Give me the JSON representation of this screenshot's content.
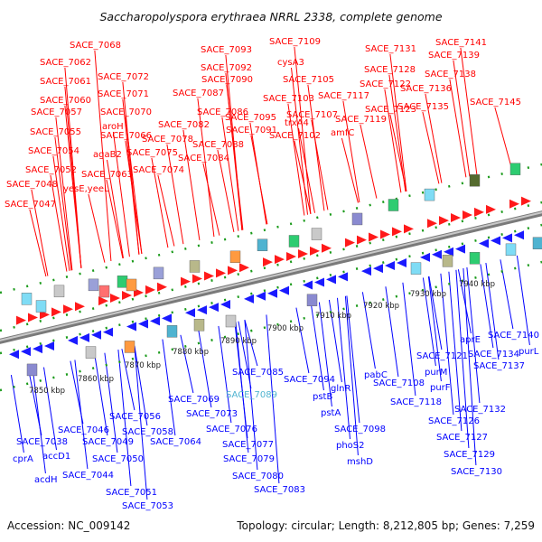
{
  "title": "Saccharopolyspora erythraea NRRL 2338, complete genome",
  "footer": {
    "accession": "Accession: NC_009142",
    "summary": "Topology: circular; Length: 8,212,805 bp; Genes: 7,259"
  },
  "colors": {
    "forward_label": "#ff0000",
    "reverse_label": "#0000ff",
    "highlight_label": "#4fb3d0",
    "backbone": "#8c8c8c",
    "ticks": "#1a9a1a"
  },
  "axis_ticks": [
    "7850 kbp",
    "7860 kbp",
    "7870 kbp",
    "7880 kbp",
    "7890 kbp",
    "7900 kbp",
    "7910 kbp",
    "7920 kbp",
    "7930 kbp",
    "7940 kbp"
  ],
  "forward_genes": [
    "SACE_7047",
    "SACE_7048",
    "SACE_7052",
    "SACE_7054",
    "SACE_7055",
    "SACE_7057",
    "SACE_7060",
    "SACE_7061",
    "SACE_7062",
    "SACE_7068",
    "SACE_7072",
    "SACE_7071",
    "SACE_7070",
    "aroH",
    "SACE_7066",
    "agaB2",
    "SACE_7063",
    "yesE,yeeL",
    "SACE_7075",
    "SACE_7074",
    "SACE_7078",
    "SACE_7082",
    "SACE_7086",
    "SACE_7087",
    "SACE_7088",
    "SACE_7084",
    "SACE_7090",
    "SACE_7091",
    "SACE_7092",
    "SACE_7093",
    "SACE_7095",
    "SACE_7109",
    "cysA3",
    "SACE_7105",
    "SACE_7103",
    "trxA4",
    "SACE_7107",
    "SACE_7102",
    "SACE_7117",
    "amfC",
    "SACE_7119",
    "SACE_7123",
    "SACE_7122",
    "SACE_7128",
    "SACE_7131",
    "SACE_7135",
    "SACE_7136",
    "SACE_7138",
    "SACE_7139",
    "SACE_7141",
    "SACE_7145"
  ],
  "reverse_genes": [
    "SACE_7038",
    "cprA",
    "accD1",
    "acdH",
    "SACE_7046",
    "SACE_7049",
    "SACE_7044",
    "SACE_7050",
    "SACE_7056",
    "SACE_7058",
    "SACE_7051",
    "SACE_7053",
    "SACE_7064",
    "SACE_7069",
    "SACE_7073",
    "SACE_7076",
    "SACE_7077",
    "SACE_7079",
    "SACE_7080",
    "SACE_7083",
    "SACE_7085",
    "SACE_7089",
    "SACE_7094",
    "pstB",
    "glnR",
    "pstA",
    "SACE_7098",
    "phoS2",
    "mshD",
    "pabC",
    "SACE_7108",
    "SACE_7118",
    "SACE_7121",
    "purM",
    "purF",
    "aprE",
    "SACE_7134",
    "SACE_7132",
    "SACE_7126",
    "SACE_7127",
    "SACE_7129",
    "SACE_7130",
    "SACE_7137",
    "SACE_7140",
    "purL"
  ]
}
